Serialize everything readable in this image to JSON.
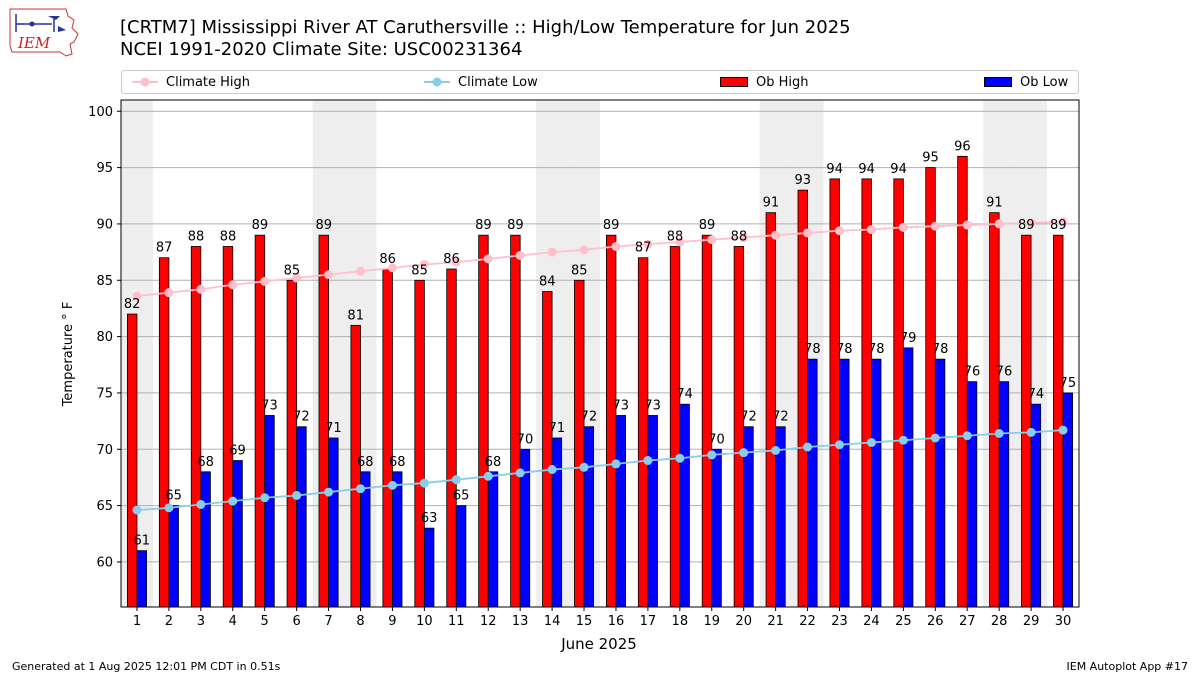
{
  "header": {
    "title_line1": "[CRTM7] Mississippi River  AT Caruthersville :: High/Low Temperature for Jun 2025",
    "title_line2": "NCEI 1991-2020 Climate Site: USC00231364"
  },
  "logo": {
    "text": "IEM"
  },
  "footer": {
    "left": "Generated at 1 Aug 2025 12:01 PM CDT in 0.51s",
    "right": "IEM Autoplot App #17"
  },
  "colors": {
    "ob_high": "#ff0000",
    "ob_low": "#0000ff",
    "climate_high": "#ffc0cb",
    "climate_low": "#87ceeb",
    "weekend_band": "#eeeeee",
    "grid": "#b0b0b0"
  },
  "chart_data": {
    "type": "bar",
    "xlabel": "June 2025",
    "ylabel": "Temperature ° F",
    "ylim": [
      56,
      101
    ],
    "yticks": [
      60,
      65,
      70,
      75,
      80,
      85,
      90,
      95,
      100
    ],
    "grid": true,
    "legend_position": "top",
    "categories": [
      1,
      2,
      3,
      4,
      5,
      6,
      7,
      8,
      9,
      10,
      11,
      12,
      13,
      14,
      15,
      16,
      17,
      18,
      19,
      20,
      21,
      22,
      23,
      24,
      25,
      26,
      27,
      28,
      29,
      30
    ],
    "shaded_days": [
      1,
      7,
      8,
      14,
      15,
      21,
      22,
      28,
      29
    ],
    "series": [
      {
        "name": "Climate High",
        "kind": "line",
        "values": [
          83.6,
          83.9,
          84.2,
          84.6,
          84.9,
          85.2,
          85.5,
          85.8,
          86.1,
          86.4,
          86.6,
          86.9,
          87.2,
          87.5,
          87.7,
          88.0,
          88.2,
          88.4,
          88.6,
          88.8,
          89.0,
          89.2,
          89.4,
          89.5,
          89.7,
          89.8,
          89.9,
          90.0,
          90.1,
          90.2
        ]
      },
      {
        "name": "Climate Low",
        "kind": "line",
        "values": [
          64.6,
          64.8,
          65.1,
          65.4,
          65.7,
          65.9,
          66.2,
          66.5,
          66.8,
          67.0,
          67.3,
          67.6,
          67.9,
          68.2,
          68.4,
          68.7,
          69.0,
          69.2,
          69.5,
          69.7,
          69.9,
          70.2,
          70.4,
          70.6,
          70.8,
          71.0,
          71.2,
          71.4,
          71.5,
          71.7
        ]
      },
      {
        "name": "Ob High",
        "kind": "bar",
        "values": [
          82,
          87,
          88,
          88,
          89,
          85,
          89,
          81,
          86,
          85,
          86,
          89,
          89,
          84,
          85,
          89,
          87,
          88,
          89,
          88,
          91,
          93,
          94,
          94,
          94,
          95,
          96,
          91,
          89,
          89
        ]
      },
      {
        "name": "Ob Low",
        "kind": "bar",
        "values": [
          61,
          65,
          68,
          69,
          73,
          72,
          71,
          68,
          68,
          63,
          65,
          68,
          70,
          71,
          72,
          73,
          73,
          74,
          70,
          72,
          72,
          78,
          78,
          78,
          79,
          78,
          76,
          76,
          74,
          75
        ]
      }
    ]
  }
}
